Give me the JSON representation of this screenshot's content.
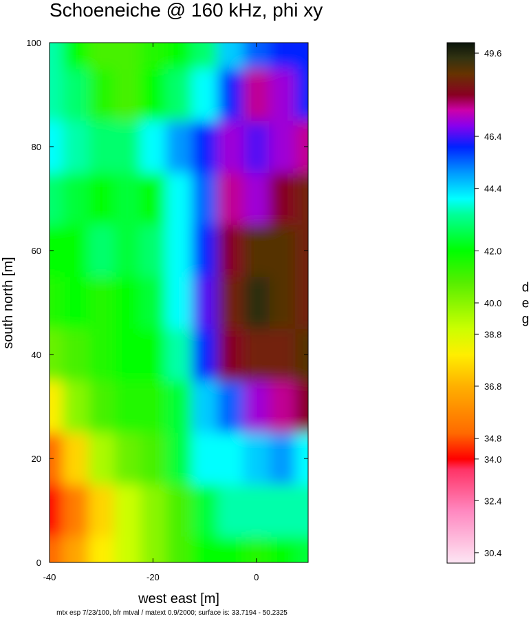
{
  "chart_data": {
    "type": "heatmap",
    "title": "Schoeneiche @ 160 kHz, phi xy",
    "x_label": "west east [m]",
    "y_label": "south north [m]",
    "colorbar_label": "deg",
    "footnote": "mtx esp 7/23/100, bfr mtval / matext 0.9/2000; surface is: 33.7194 - 50.2325",
    "xlim": [
      -40,
      10
    ],
    "ylim": [
      0,
      100
    ],
    "xticks": [
      -40,
      -20,
      0
    ],
    "yticks": [
      0,
      20,
      40,
      60,
      80,
      100
    ],
    "x": [
      -40,
      -35,
      -30,
      -25,
      -20,
      -15,
      -10,
      -5,
      0,
      5,
      10
    ],
    "y": [
      0,
      10,
      20,
      30,
      40,
      50,
      60,
      70,
      80,
      90,
      100
    ],
    "z": [
      [
        35,
        36.5,
        38,
        39,
        40,
        41,
        42,
        42,
        41.5,
        42,
        42.5
      ],
      [
        34,
        35.5,
        37.5,
        39,
        40,
        41,
        42.5,
        43.5,
        43.5,
        43.5,
        43.5
      ],
      [
        35,
        37.5,
        39.5,
        40.5,
        41,
        42.5,
        44,
        44,
        44.5,
        45,
        44
      ],
      [
        38,
        40,
        41,
        41.5,
        41.5,
        42.5,
        44.5,
        45.5,
        47,
        47.5,
        48
      ],
      [
        40.5,
        41,
        41.5,
        42,
        42,
        43.5,
        46,
        48,
        48.5,
        48.5,
        49
      ],
      [
        41.5,
        42,
        41.5,
        42,
        42.5,
        44,
        46.5,
        48.5,
        49.5,
        49,
        48.5
      ],
      [
        42,
        42,
        43,
        42.5,
        43,
        44,
        46,
        48,
        49,
        49,
        48.5
      ],
      [
        43,
        42.5,
        42,
        42.5,
        42,
        44,
        45.5,
        47.5,
        47,
        48,
        48.5
      ],
      [
        44,
        43.5,
        43,
        43,
        44,
        45,
        46,
        47,
        46.5,
        47,
        47.5
      ],
      [
        43.5,
        43,
        41.5,
        41,
        42,
        43,
        44,
        46,
        47.5,
        47,
        46
      ],
      [
        43.5,
        42,
        41,
        41,
        41.5,
        42,
        43,
        44.5,
        45.5,
        46,
        46
      ]
    ],
    "clim": [
      30,
      50
    ],
    "cticks": [
      {
        "value": 30.4,
        "label": "30.4"
      },
      {
        "value": 32.4,
        "label": "32.4"
      },
      {
        "value": 34,
        "label": "34.0"
      },
      {
        "value": 34.8,
        "label": "34.8"
      },
      {
        "value": 36.8,
        "label": "36.8"
      },
      {
        "value": 38.8,
        "label": "38.8"
      },
      {
        "value": 40,
        "label": "40.0"
      },
      {
        "value": 42,
        "label": "42.0"
      },
      {
        "value": 44.4,
        "label": "44.4"
      },
      {
        "value": 46.4,
        "label": "46.4"
      },
      {
        "value": 49.6,
        "label": "49.6"
      }
    ],
    "colorscale": [
      {
        "value": 30,
        "color": "#fde6f4"
      },
      {
        "value": 32,
        "color": "#ff88c0"
      },
      {
        "value": 33.6,
        "color": "#ff3366"
      },
      {
        "value": 34,
        "color": "#ff0000"
      },
      {
        "value": 35,
        "color": "#ff6a00"
      },
      {
        "value": 36.8,
        "color": "#ffb000"
      },
      {
        "value": 38,
        "color": "#ffee00"
      },
      {
        "value": 39,
        "color": "#ccff00"
      },
      {
        "value": 40.8,
        "color": "#55ee00"
      },
      {
        "value": 42,
        "color": "#00ff00"
      },
      {
        "value": 43.4,
        "color": "#00ff99"
      },
      {
        "value": 44,
        "color": "#00ffff"
      },
      {
        "value": 45,
        "color": "#0099ff"
      },
      {
        "value": 46,
        "color": "#0022ff"
      },
      {
        "value": 46.8,
        "color": "#8800ee"
      },
      {
        "value": 47.4,
        "color": "#cc00aa"
      },
      {
        "value": 48,
        "color": "#880022"
      },
      {
        "value": 48.8,
        "color": "#663300"
      },
      {
        "value": 49.4,
        "color": "#333311"
      },
      {
        "value": 50,
        "color": "#0a140a"
      }
    ]
  }
}
